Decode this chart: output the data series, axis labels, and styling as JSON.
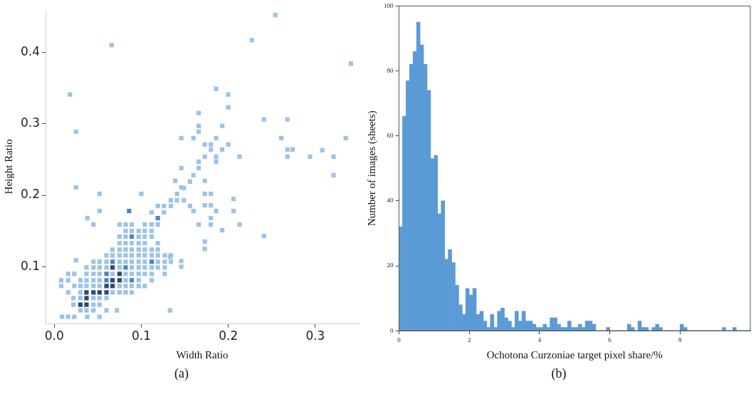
{
  "chart_data": [
    {
      "type": "scatter",
      "xlabel": "Width Ratio",
      "ylabel": "Height Ratio",
      "marker": "square",
      "xlim": [
        -0.01,
        0.35
      ],
      "ylim": [
        0.02,
        0.46
      ],
      "xticks": [
        {
          "value": 0,
          "label": "0.0"
        },
        0.1,
        0.2,
        0.3
      ],
      "yticks": [
        0.1,
        0.2,
        0.3,
        0.4
      ],
      "annotations": [
        "(a)"
      ],
      "series": [
        {
          "color": "#9dc3e6",
          "x": [
            0.254,
            0.227,
            0.341,
            0.186,
            0.2,
            0.2,
            0.166,
            0.166,
            0.166,
            0.193,
            0.241,
            0.268,
            0.146,
            0.16,
            0.186,
            0.261,
            0.335,
            0.173,
            0.18,
            0.2,
            0.193,
            0.18,
            0.268,
            0.274,
            0.213,
            0.268,
            0.294,
            0.308,
            0.321,
            0.321,
            0.173,
            0.186,
            0.166,
            0.186,
            0.146,
            0.166,
            0.16,
            0.173,
            0.139,
            0.146,
            0.173,
            0.18,
            0.206,
            0.173,
            0.206,
            0.16,
            0.18,
            0.186,
            0.18,
            0.166,
            0.18,
            0.213,
            0.193,
            0.241,
            0.173,
            0.173,
            0.146,
            0.146,
            0.133,
            0.066,
            0.018,
            0.025,
            0.025,
            0.052,
            0.1,
            0.052,
            0.038,
            0.045,
            0.025,
            0.133,
            0.072,
            0.009,
            0.016,
            0.023,
            0.038,
            0.052,
            0.03,
            0.037,
            0.045,
            0.06,
            0.022,
            0.045,
            0.052,
            0.022,
            0.03,
            0.045,
            0.052,
            0.06,
            0.016,
            0.03,
            0.067,
            0.075,
            0.082,
            0.089,
            0.008,
            0.023,
            0.03,
            0.037,
            0.045,
            0.052,
            0.075,
            0.082,
            0.089,
            0.097,
            0.104,
            0.008,
            0.016,
            0.03,
            0.037,
            0.045,
            0.052,
            0.082,
            0.097,
            0.112,
            0.016,
            0.023,
            0.037,
            0.045,
            0.052,
            0.067,
            0.082,
            0.089,
            0.097,
            0.104,
            0.112,
            0.127,
            0.037,
            0.045,
            0.052,
            0.06,
            0.075,
            0.089,
            0.097,
            0.104,
            0.112,
            0.119,
            0.127,
            0.045,
            0.052,
            0.06,
            0.075,
            0.082,
            0.089,
            0.097,
            0.104,
            0.119,
            0.127,
            0.134,
            0.06,
            0.067,
            0.075,
            0.082,
            0.089,
            0.097,
            0.104,
            0.112,
            0.119,
            0.127,
            0.134,
            0.067,
            0.075,
            0.082,
            0.089,
            0.097,
            0.104,
            0.112,
            0.119,
            0.075,
            0.082,
            0.089,
            0.097,
            0.104,
            0.119,
            0.075,
            0.082,
            0.097,
            0.104,
            0.112,
            0.082,
            0.089,
            0.097,
            0.104,
            0.112,
            0.075,
            0.082,
            0.089,
            0.104,
            0.112,
            0.119,
            0.126,
            0.134,
            0.141,
            0.126,
            0.134,
            0.141,
            0.149,
            0.156,
            0.149,
            0.156,
            0.119,
            0.112
          ],
          "values": [
            0.452,
            0.417,
            0.384,
            0.349,
            0.341,
            0.323,
            0.315,
            0.297,
            0.289,
            0.297,
            0.306,
            0.306,
            0.28,
            0.28,
            0.28,
            0.28,
            0.28,
            0.271,
            0.271,
            0.271,
            0.264,
            0.264,
            0.264,
            0.264,
            0.254,
            0.254,
            0.254,
            0.263,
            0.254,
            0.228,
            0.254,
            0.254,
            0.247,
            0.247,
            0.238,
            0.238,
            0.228,
            0.22,
            0.22,
            0.211,
            0.202,
            0.202,
            0.195,
            0.186,
            0.178,
            0.178,
            0.186,
            0.178,
            0.168,
            0.159,
            0.159,
            0.159,
            0.151,
            0.143,
            0.135,
            0.125,
            0.108,
            0.1,
            0.114,
            0.41,
            0.341,
            0.289,
            0.211,
            0.202,
            0.202,
            0.178,
            0.168,
            0.159,
            0.109,
            0.039,
            0.039,
            0.03,
            0.03,
            0.03,
            0.03,
            0.03,
            0.039,
            0.039,
            0.039,
            0.039,
            0.047,
            0.047,
            0.047,
            0.056,
            0.056,
            0.056,
            0.056,
            0.056,
            0.064,
            0.064,
            0.064,
            0.064,
            0.064,
            0.064,
            0.073,
            0.073,
            0.073,
            0.073,
            0.073,
            0.073,
            0.073,
            0.073,
            0.073,
            0.073,
            0.073,
            0.081,
            0.081,
            0.081,
            0.081,
            0.081,
            0.081,
            0.081,
            0.081,
            0.081,
            0.09,
            0.09,
            0.09,
            0.09,
            0.09,
            0.09,
            0.09,
            0.09,
            0.09,
            0.09,
            0.09,
            0.09,
            0.099,
            0.099,
            0.099,
            0.099,
            0.099,
            0.099,
            0.099,
            0.099,
            0.099,
            0.099,
            0.099,
            0.107,
            0.107,
            0.107,
            0.107,
            0.107,
            0.107,
            0.107,
            0.107,
            0.107,
            0.107,
            0.107,
            0.116,
            0.116,
            0.116,
            0.116,
            0.116,
            0.116,
            0.116,
            0.116,
            0.116,
            0.116,
            0.116,
            0.124,
            0.124,
            0.124,
            0.124,
            0.124,
            0.124,
            0.124,
            0.124,
            0.133,
            0.133,
            0.133,
            0.133,
            0.133,
            0.133,
            0.142,
            0.142,
            0.142,
            0.142,
            0.142,
            0.15,
            0.15,
            0.15,
            0.15,
            0.15,
            0.159,
            0.159,
            0.159,
            0.159,
            0.159,
            0.159,
            0.176,
            0.185,
            0.193,
            0.185,
            0.193,
            0.202,
            0.21,
            0.219,
            0.193,
            0.185,
            0.185,
            0.176
          ]
        },
        {
          "color": "#4a86c5",
          "x": [
            0.086,
            0.119,
            0.089,
            0.06,
            0.06,
            0.082,
            0.089,
            0.067,
            0.112
          ],
          "values": [
            0.178,
            0.168,
            0.142,
            0.09,
            0.081,
            0.099,
            0.081,
            0.107,
            0.107
          ]
        },
        {
          "color": "#2e4a6b",
          "x": [
            0.03,
            0.037,
            0.037,
            0.037,
            0.045,
            0.052,
            0.06,
            0.06,
            0.067,
            0.067,
            0.075,
            0.075,
            0.067
          ],
          "values": [
            0.047,
            0.047,
            0.056,
            0.064,
            0.064,
            0.064,
            0.064,
            0.073,
            0.073,
            0.081,
            0.081,
            0.09,
            0.099
          ]
        }
      ]
    },
    {
      "type": "histogram",
      "xlabel": "Ochotona Curzoniae target pixel share/%",
      "ylabel": "Number of images (sheets)",
      "color": "#5b9bd5",
      "xlim": [
        0,
        10
      ],
      "ylim": [
        0,
        100
      ],
      "xticks": [
        0,
        2,
        4,
        6,
        8
      ],
      "yticks": [
        0,
        20,
        40,
        60,
        80,
        100
      ],
      "annotations": [
        "(b)"
      ],
      "bins": [
        0,
        0.1,
        0.2,
        0.3,
        0.4,
        0.5,
        0.6,
        0.7,
        0.8,
        0.9,
        1,
        1.1,
        1.2,
        1.3,
        1.4,
        1.5,
        1.6,
        1.7,
        1.8,
        1.9,
        2,
        2.1,
        2.2,
        2.3,
        2.4,
        2.5,
        2.6,
        2.7,
        2.8,
        2.9,
        3,
        3.1,
        3.2,
        3.3,
        3.4,
        3.5,
        3.6,
        3.7,
        3.8,
        3.9,
        4,
        4.1,
        4.2,
        4.3,
        4.4,
        4.5,
        4.6,
        4.7,
        4.8,
        4.9,
        5,
        5.1,
        5.2,
        5.3,
        5.4,
        5.5,
        5.6,
        5.7,
        5.8,
        5.9,
        6,
        6.1,
        6.2,
        6.3,
        6.4,
        6.5,
        6.6,
        6.7,
        6.8,
        6.9,
        7,
        7.1,
        7.2,
        7.3,
        7.4,
        7.5,
        7.6,
        7.7,
        7.8,
        7.9,
        8,
        8.1,
        8.2,
        8.3,
        8.4,
        8.5,
        8.6,
        8.7,
        8.8,
        8.9,
        9,
        9.1,
        9.2,
        9.3,
        9.4,
        9.5,
        9.6,
        9.7,
        9.8,
        9.9,
        10
      ],
      "values": [
        32,
        66,
        77,
        82,
        86,
        95,
        88,
        82,
        74,
        53,
        54,
        36,
        40,
        22,
        25,
        21,
        14,
        8,
        5,
        13,
        11,
        13,
        5,
        6,
        3,
        1,
        5,
        1,
        6,
        7,
        4,
        3,
        1,
        6,
        3,
        6,
        3,
        3,
        2,
        1,
        1,
        2,
        1,
        4,
        4,
        2,
        1,
        1,
        3,
        1,
        1,
        2,
        1,
        3,
        3,
        2,
        0,
        0,
        0,
        1,
        0,
        0,
        0,
        0,
        0,
        2,
        1,
        0,
        3,
        1,
        1,
        0,
        1,
        2,
        1,
        0,
        0,
        0,
        0,
        0,
        2,
        1,
        0,
        0,
        0,
        0,
        0,
        0,
        0,
        0,
        0,
        0,
        1,
        0,
        0,
        1,
        0,
        0,
        0,
        0
      ]
    }
  ]
}
